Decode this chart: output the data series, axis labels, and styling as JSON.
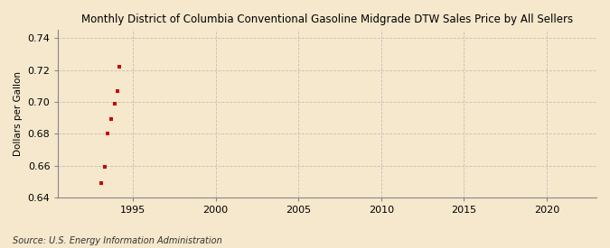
{
  "title": "Monthly District of Columbia Conventional Gasoline Midgrade DTW Sales Price by All Sellers",
  "ylabel": "Dollars per Gallon",
  "source": "Source: U.S. Energy Information Administration",
  "background_color": "#f5e8cc",
  "data_x": [
    1993.1,
    1993.3,
    1993.5,
    1993.7,
    1993.9,
    1994.1,
    1994.2
  ],
  "data_y": [
    0.649,
    0.659,
    0.68,
    0.689,
    0.699,
    0.707,
    0.722
  ],
  "marker_color": "#cc0000",
  "marker_size": 12,
  "xlim": [
    1990.5,
    2023
  ],
  "ylim": [
    0.64,
    0.745
  ],
  "xticks": [
    1995,
    2000,
    2005,
    2010,
    2015,
    2020
  ],
  "yticks": [
    0.64,
    0.66,
    0.68,
    0.7,
    0.72,
    0.74
  ],
  "grid_color": "#bbbbbb",
  "title_fontsize": 8.5,
  "label_fontsize": 7.5,
  "tick_fontsize": 8,
  "source_fontsize": 7
}
